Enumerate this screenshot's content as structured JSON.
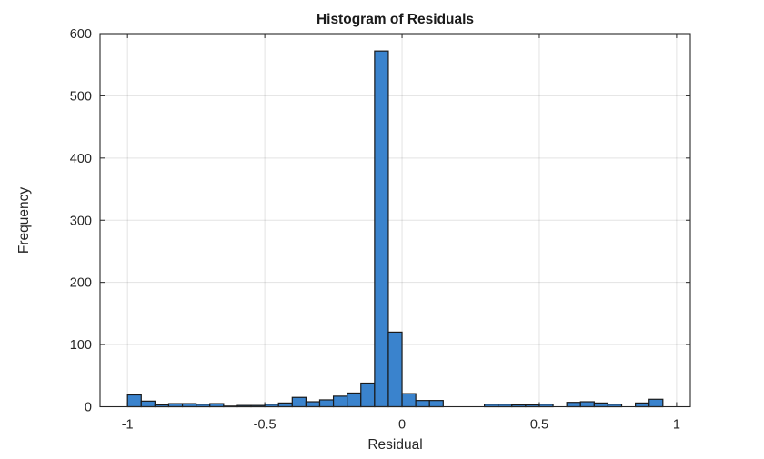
{
  "figure": {
    "background": "#ffffff"
  },
  "chart_data": {
    "type": "bar",
    "subtype": "histogram",
    "title": "Histogram of Residuals",
    "xlabel": "Residual",
    "ylabel": "Frequency",
    "bin_width": 0.05,
    "bins_start": [
      -1.0,
      -0.95,
      -0.9,
      -0.85,
      -0.8,
      -0.75,
      -0.7,
      -0.65,
      -0.6,
      -0.55,
      -0.5,
      -0.45,
      -0.4,
      -0.35,
      -0.3,
      -0.25,
      -0.2,
      -0.15,
      -0.1,
      -0.05,
      0.0,
      0.05,
      0.1,
      0.15,
      0.2,
      0.25,
      0.3,
      0.35,
      0.4,
      0.45,
      0.5,
      0.55,
      0.6,
      0.65,
      0.7,
      0.75,
      0.8,
      0.85,
      0.9,
      0.95
    ],
    "counts": [
      19,
      9,
      3,
      5,
      5,
      4,
      5,
      1,
      2,
      2,
      4,
      6,
      15,
      8,
      11,
      17,
      22,
      38,
      572,
      120,
      21,
      10,
      10,
      0,
      0,
      0,
      4,
      4,
      3,
      3,
      4,
      0,
      7,
      8,
      6,
      4,
      0,
      6,
      12,
      0
    ],
    "xlim": [
      -1.1,
      1.05
    ],
    "ylim": [
      0,
      600
    ],
    "xticks": [
      -1,
      -0.5,
      0,
      0.5,
      1
    ],
    "xtick_labels": [
      "-1",
      "-0.5",
      "0",
      "0.5",
      "1"
    ],
    "yticks": [
      0,
      100,
      200,
      300,
      400,
      500,
      600
    ],
    "ytick_labels": [
      "0",
      "100",
      "200",
      "300",
      "400",
      "500",
      "600"
    ],
    "grid": true,
    "legend": null,
    "colors": {
      "bar_fill": "#3A83CD",
      "bar_edge": "#1A1A1A",
      "axis_box": "#262626",
      "grid": "#262626",
      "grid_alpha": 0.13,
      "title": "#1A1A1A",
      "labels": "#262626",
      "tick_labels": "#262626"
    }
  }
}
